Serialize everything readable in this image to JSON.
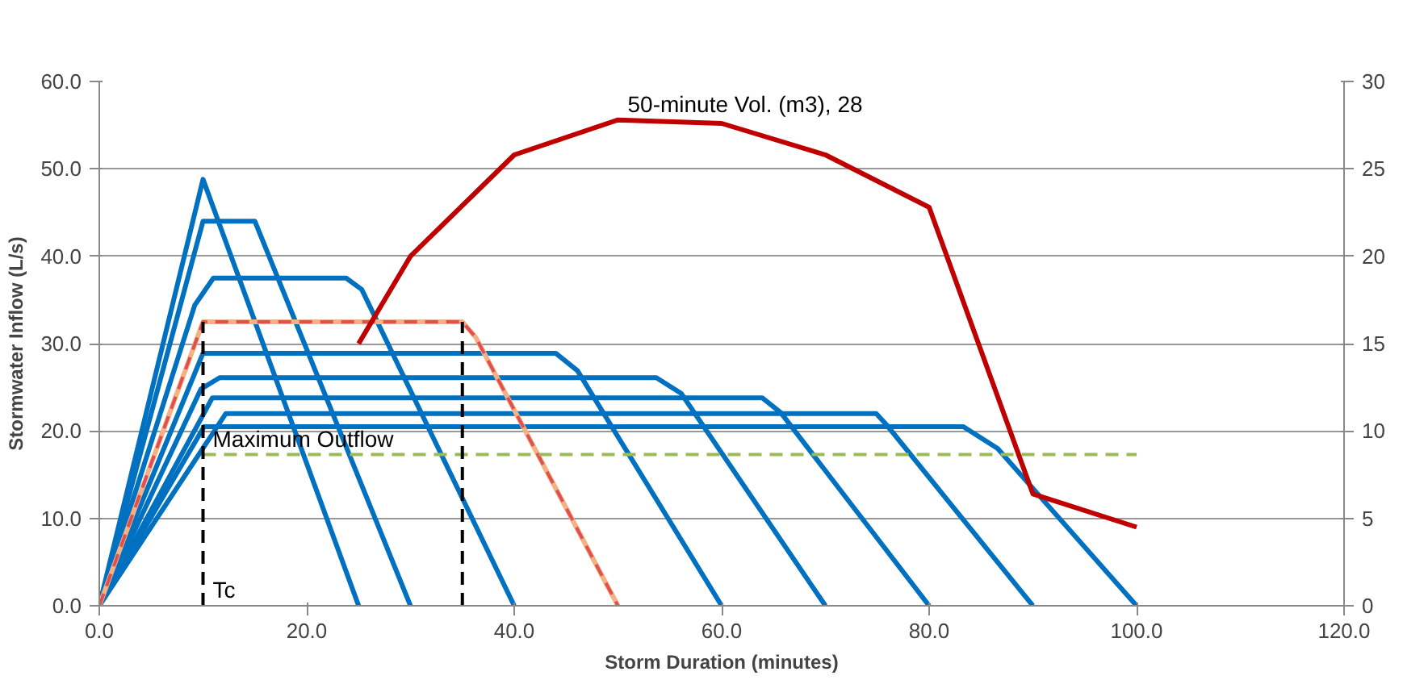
{
  "chart_data": {
    "type": "line",
    "xlabel": "Storm Duration (minutes)",
    "ylabel": "Stormwater Inflow (L/s)",
    "xlim": [
      0,
      120
    ],
    "xticks": [
      {
        "value": 0,
        "label": "0.0"
      },
      {
        "value": 20,
        "label": "20.0"
      },
      {
        "value": 40,
        "label": "40.0"
      },
      {
        "value": 60,
        "label": "60.0"
      },
      {
        "value": 80,
        "label": "80.0"
      },
      {
        "value": 100,
        "label": "100.0"
      },
      {
        "value": 120,
        "label": "120.0"
      }
    ],
    "ylim": [
      0,
      60
    ],
    "yticks": [
      {
        "value": 0,
        "label": "0.0"
      },
      {
        "value": 10,
        "label": "10.0"
      },
      {
        "value": 20,
        "label": "20.0"
      },
      {
        "value": 30,
        "label": "30.0"
      },
      {
        "value": 40,
        "label": "40.0"
      },
      {
        "value": 50,
        "label": "50.0"
      },
      {
        "value": 60,
        "label": "60.0"
      }
    ],
    "y2lim": [
      0,
      30
    ],
    "y2ticks": [
      0,
      5,
      10,
      15,
      20,
      25,
      30
    ],
    "grid": "y",
    "line_style": "solid",
    "marker": "none",
    "series": [
      {
        "color": "#0070c0",
        "x": [
          0,
          10,
          25
        ],
        "values": [
          0,
          48.8,
          0
        ]
      },
      {
        "color": "#0070c0",
        "x": [
          0,
          10,
          15,
          30
        ],
        "values": [
          0,
          44.0,
          44.0,
          0
        ]
      },
      {
        "color": "#0070c0",
        "x": [
          0,
          9.2,
          11,
          23.8,
          25.3,
          40
        ],
        "values": [
          0,
          34.4,
          37.5,
          37.5,
          36.2,
          0
        ]
      },
      {
        "color": "#0070c0",
        "x": [
          0,
          10,
          44,
          46.1,
          60
        ],
        "values": [
          0,
          28.9,
          28.9,
          26.9,
          0
        ]
      },
      {
        "color": "#0070c0",
        "x": [
          0,
          9.8,
          11.6,
          53.7,
          56.1,
          70
        ],
        "values": [
          0,
          24.8,
          26.1,
          26.1,
          24.3,
          0
        ]
      },
      {
        "color": "#0070c0",
        "x": [
          0,
          10.9,
          63.9,
          65.7,
          80
        ],
        "values": [
          0,
          23.8,
          23.8,
          22.1,
          0
        ]
      },
      {
        "color": "#0070c0",
        "x": [
          0,
          12.2,
          74.9,
          75.9,
          90
        ],
        "values": [
          0,
          22.0,
          22.0,
          20.7,
          0
        ]
      },
      {
        "color": "#0070c0",
        "x": [
          0,
          10.1,
          83.3,
          86.6,
          100
        ],
        "values": [
          0,
          20.5,
          20.5,
          18.0,
          0
        ]
      },
      {
        "color": "#f4b183",
        "x": [
          0,
          10,
          35,
          36.3,
          50
        ],
        "values": [
          0,
          32.5,
          32.5,
          30.7,
          0
        ]
      },
      {
        "color": "#e05050",
        "line_style": "dashed",
        "x": [
          0,
          10,
          35,
          36.3,
          50
        ],
        "values": [
          0,
          32.5,
          32.5,
          30.7,
          0
        ]
      },
      {
        "color": "#9bbb59",
        "line_style": "dashed",
        "x": [
          10,
          100
        ],
        "values": [
          17.3,
          17.3
        ],
        "value_labels": [
          "Maximum Outflow",
          null
        ]
      },
      {
        "color": "#000000",
        "line_style": "dashed",
        "x": [
          10,
          10
        ],
        "values": [
          0,
          32.5
        ],
        "value_labels": [
          "Tc",
          null
        ]
      },
      {
        "color": "#000000",
        "line_style": "dashed",
        "x": [
          35,
          35
        ],
        "values": [
          0,
          32.5
        ]
      },
      {
        "color": "#c00000",
        "axis": "y2",
        "x": [
          25,
          30,
          40,
          50,
          60,
          70,
          80,
          90,
          100
        ],
        "values": [
          15.0,
          20.0,
          25.8,
          27.8,
          27.6,
          25.8,
          22.8,
          6.4,
          4.5
        ],
        "value_labels": [
          null,
          null,
          null,
          "50-minute Vol. (m3), 28",
          null,
          null,
          null,
          null,
          null
        ]
      }
    ]
  }
}
